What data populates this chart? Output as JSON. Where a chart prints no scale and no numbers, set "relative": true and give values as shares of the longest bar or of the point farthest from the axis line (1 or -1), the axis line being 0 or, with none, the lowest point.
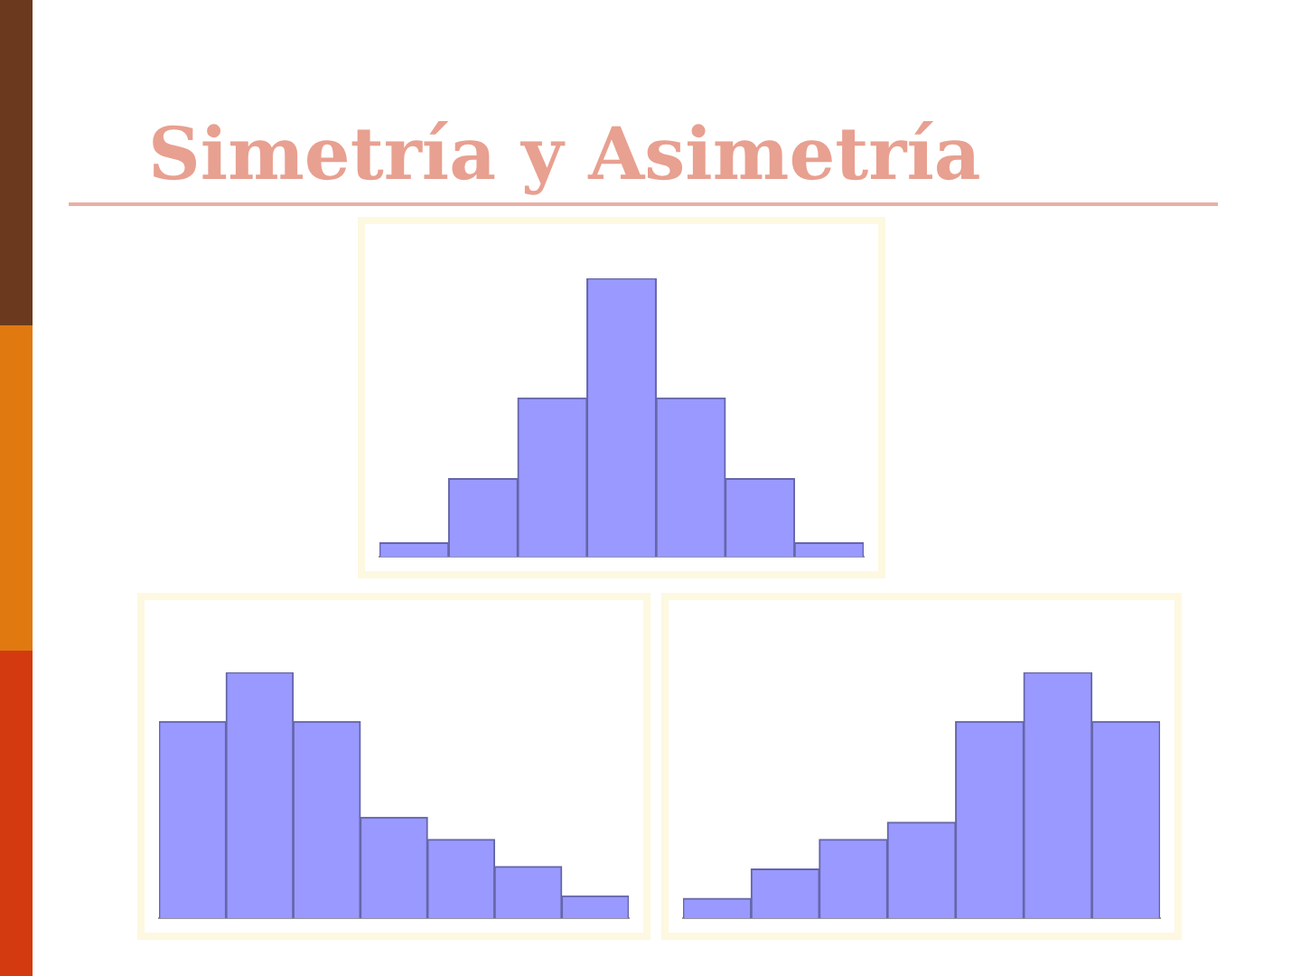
{
  "chart_data": [
    {
      "type": "bar",
      "title": "Simetría y Asimetría",
      "relative": true,
      "categories": [
        null,
        null,
        null,
        null,
        null,
        null,
        null
      ],
      "values": [
        0.05,
        0.28,
        0.57,
        1,
        0.57,
        0.28,
        0.05
      ],
      "color": "#9999ff",
      "legend": false,
      "grid": false
    },
    {
      "type": "bar",
      "relative": true,
      "categories": [
        null,
        null,
        null,
        null,
        null,
        null,
        null
      ],
      "values": [
        0.8,
        1,
        0.8,
        0.41,
        0.32,
        0.21,
        0.09
      ],
      "color": "#9999ff",
      "legend": false,
      "grid": false
    },
    {
      "type": "bar",
      "relative": true,
      "categories": [
        null,
        null,
        null,
        null,
        null,
        null,
        null
      ],
      "values": [
        0.08,
        0.2,
        0.32,
        0.39,
        0.8,
        1,
        0.8
      ],
      "color": "#9999ff",
      "legend": false,
      "grid": false
    }
  ]
}
